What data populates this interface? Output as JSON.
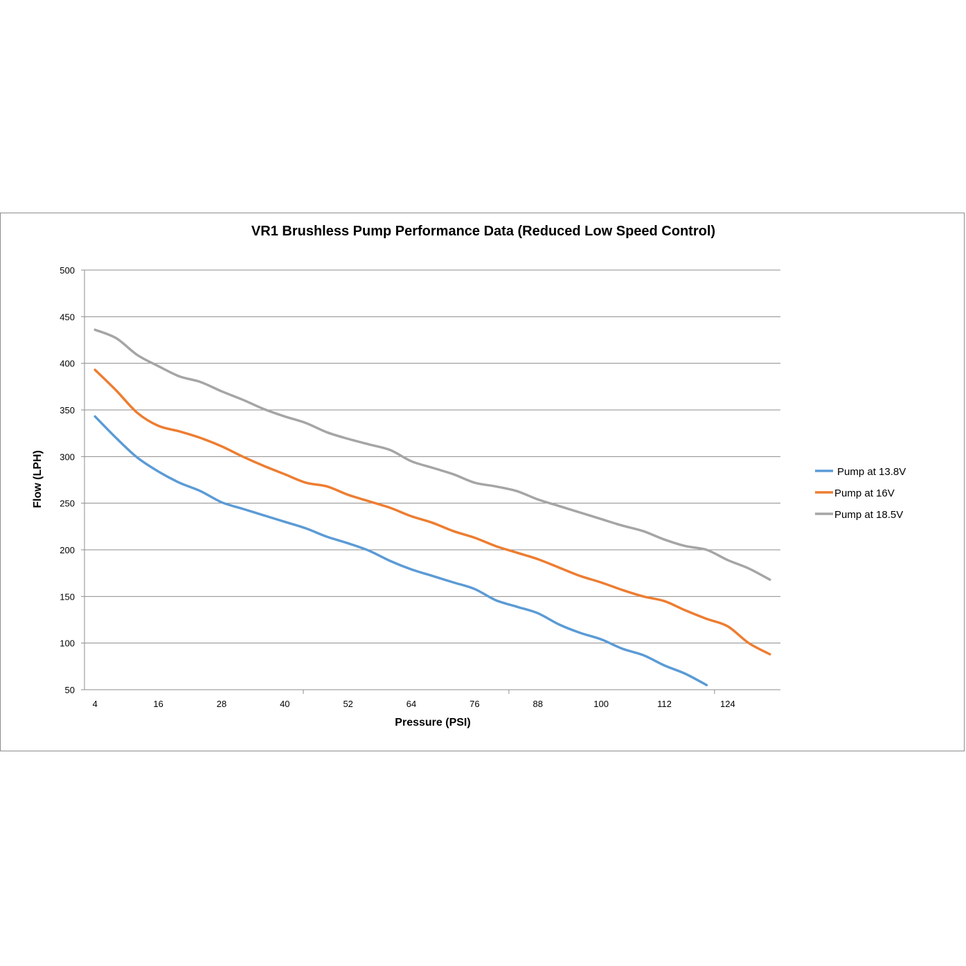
{
  "chart_data": {
    "type": "line",
    "title": "VR1 Brushless Pump Performance Data (Reduced Low Speed  Control)",
    "xlabel": "Pressure (PSI)",
    "ylabel": "Flow (LPH)",
    "ylim": [
      50,
      500
    ],
    "yticks": [
      50,
      100,
      150,
      200,
      250,
      300,
      350,
      400,
      450,
      500
    ],
    "xticks": [
      4,
      16,
      28,
      40,
      52,
      64,
      76,
      88,
      100,
      112,
      124
    ],
    "xlim": [
      2,
      134
    ],
    "grid": "horizontal",
    "legend_position": "right",
    "x": [
      4,
      8,
      12,
      16,
      20,
      24,
      28,
      32,
      36,
      40,
      44,
      48,
      52,
      56,
      60,
      64,
      68,
      72,
      76,
      80,
      84,
      88,
      92,
      96,
      100,
      104,
      108,
      112,
      116,
      120,
      124,
      128,
      132
    ],
    "series": [
      {
        "name": "Pump at 13.8V",
        "color": "#5b9bd5",
        "values": [
          343,
          320,
          299,
          284,
          272,
          263,
          251,
          244,
          237,
          230,
          223,
          214,
          207,
          199,
          188,
          179,
          172,
          165,
          158,
          146,
          139,
          132,
          120,
          111,
          104,
          94,
          87,
          76,
          67,
          55,
          null,
          null,
          null
        ]
      },
      {
        "name": "Pump at 16V",
        "color": "#ed7d31",
        "values": [
          393,
          371,
          347,
          333,
          327,
          320,
          311,
          300,
          290,
          281,
          272,
          268,
          259,
          252,
          245,
          236,
          229,
          220,
          213,
          204,
          197,
          190,
          181,
          172,
          165,
          157,
          150,
          145,
          135,
          126,
          118,
          100,
          88
        ]
      },
      {
        "name": "Pump at 18.5V",
        "color": "#a5a5a5",
        "values": [
          436,
          427,
          409,
          397,
          386,
          380,
          370,
          361,
          351,
          343,
          336,
          326,
          319,
          313,
          307,
          295,
          288,
          281,
          272,
          268,
          263,
          254,
          247,
          240,
          233,
          226,
          220,
          211,
          204,
          200,
          189,
          180,
          168
        ]
      }
    ]
  }
}
